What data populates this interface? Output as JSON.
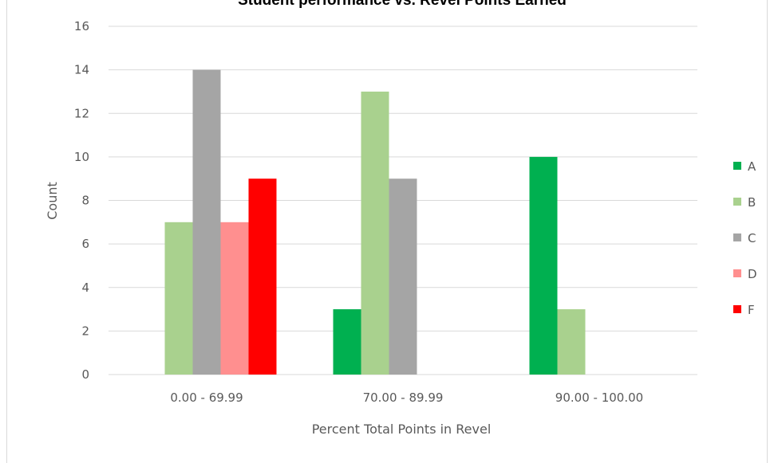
{
  "chart_data": {
    "type": "bar",
    "title": "Student performance vs. Revel Points Earned",
    "xlabel": "Percent Total Points in Revel",
    "ylabel": "Count",
    "ylim": [
      0,
      16
    ],
    "yticks": [
      0,
      2,
      4,
      6,
      8,
      10,
      12,
      14,
      16
    ],
    "categories": [
      "0.00 - 69.99",
      "70.00 - 89.99",
      "90.00 - 100.00"
    ],
    "series": [
      {
        "name": "A",
        "color": "#00b050",
        "values": [
          0,
          3,
          10
        ]
      },
      {
        "name": "B",
        "color": "#a9d18e",
        "values": [
          7,
          13,
          3
        ]
      },
      {
        "name": "C",
        "color": "#a5a5a5",
        "values": [
          14,
          9,
          0
        ]
      },
      {
        "name": "D",
        "color": "#ff8f8f",
        "values": [
          7,
          0,
          0
        ]
      },
      {
        "name": "F",
        "color": "#ff0000",
        "values": [
          9,
          0,
          0
        ]
      }
    ],
    "grid": true,
    "legend_position": "right"
  }
}
